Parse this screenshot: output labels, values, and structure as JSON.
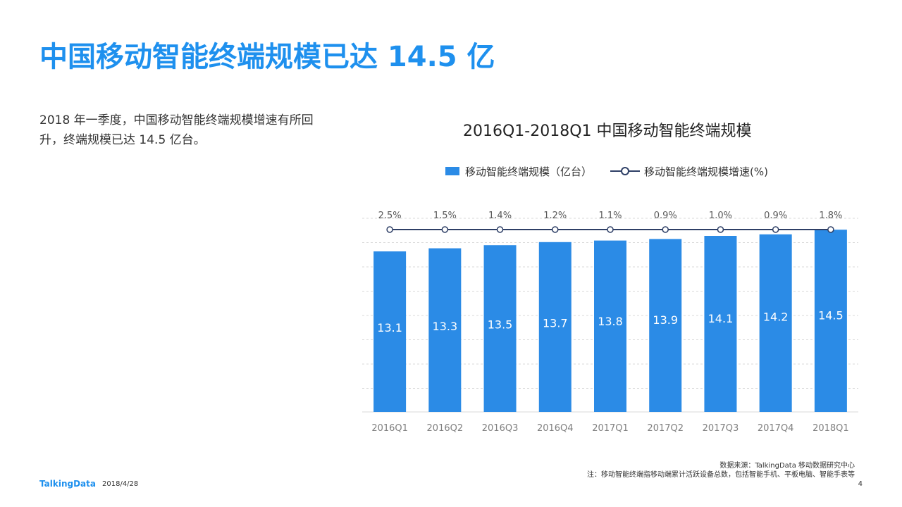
{
  "slide": {
    "title": "中国移动智能终端规模已达 14.5 亿",
    "summary": "2018 年一季度，中国移动智能终端规模增速有所回升，终端规模已达 14.5 亿台。"
  },
  "chart_data": {
    "type": "bar",
    "title": "2016Q1-2018Q1  中国移动智能终端规模",
    "categories": [
      "2016Q1",
      "2016Q2",
      "2016Q3",
      "2016Q4",
      "2017Q1",
      "2017Q2",
      "2017Q3",
      "2017Q4",
      "2018Q1"
    ],
    "series": [
      {
        "name": "移动智能终端规模（亿台）",
        "type": "bar",
        "color": "#2b8be6",
        "values": [
          13.1,
          13.3,
          13.5,
          13.7,
          13.8,
          13.9,
          14.1,
          14.2,
          14.5
        ],
        "labels": [
          "13.1",
          "13.3",
          "13.5",
          "13.7",
          "13.8",
          "13.9",
          "14.1",
          "14.2",
          "14.5"
        ]
      },
      {
        "name": "移动智能终端规模增速(%)",
        "type": "line",
        "color": "#2e3f66",
        "values": [
          2.5,
          1.5,
          1.4,
          1.2,
          1.1,
          0.9,
          1.0,
          0.9,
          1.8
        ],
        "labels": [
          "2.5%",
          "1.5%",
          "1.4%",
          "1.2%",
          "1.1%",
          "0.9%",
          "1.0%",
          "0.9%",
          "1.8%"
        ]
      }
    ],
    "grid": true,
    "legend_position": "top"
  },
  "footer": {
    "source": "数据来源：TalkingData 移动数据研究中心",
    "note": "注：移动智能终端指移动端累计活跃设备总数，包括智能手机、平板电脑、智能手表等",
    "brand": "TalkingData",
    "date": "2018/4/28",
    "page": "4"
  }
}
